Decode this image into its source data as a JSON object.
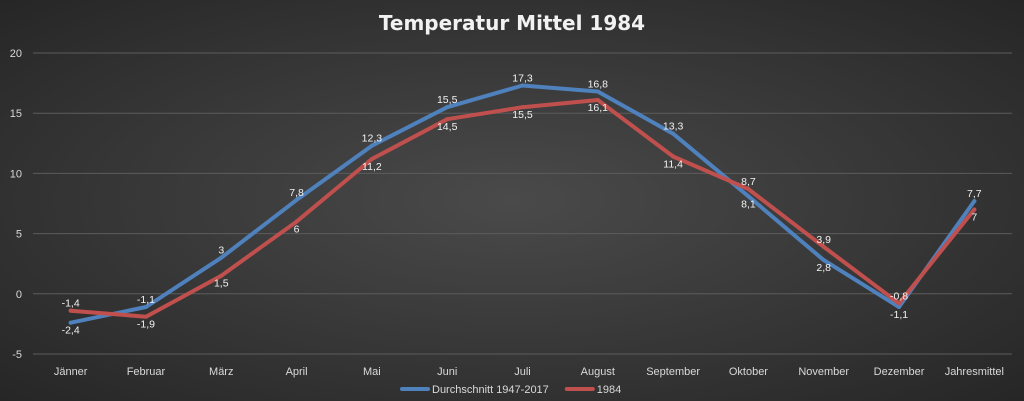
{
  "chart_data": {
    "type": "line",
    "title": "Temperatur Mittel 1984",
    "xlabel": "",
    "ylabel": "",
    "categories": [
      "Jänner",
      "Februar",
      "März",
      "April",
      "Mai",
      "Juni",
      "Juli",
      "August",
      "September",
      "Oktober",
      "November",
      "Dezember",
      "Jahresmittel"
    ],
    "ylim": [
      -5,
      20
    ],
    "yticks": [
      -5,
      0,
      5,
      10,
      15,
      20
    ],
    "grid": true,
    "legend_position": "bottom",
    "series": [
      {
        "name": "Durchschnitt 1947-2017",
        "color": "#4f81bd",
        "values": [
          -2.4,
          -1.1,
          3,
          7.8,
          12.3,
          15.5,
          17.3,
          16.8,
          13.3,
          8.1,
          2.8,
          -1.1,
          7.7
        ],
        "labels": [
          "-2,4",
          "-1,1",
          "3",
          "7,8",
          "12,3",
          "15,5",
          "17,3",
          "16,8",
          "13,3",
          "8,1",
          "2,8",
          "-1,1",
          "7,7"
        ]
      },
      {
        "name": "1984",
        "color": "#c0504d",
        "values": [
          -1.4,
          -1.9,
          1.5,
          6,
          11.2,
          14.5,
          15.5,
          16.1,
          11.4,
          8.7,
          3.9,
          -0.8,
          7
        ],
        "labels": [
          "-1,4",
          "-1,9",
          "1,5",
          "6",
          "11,2",
          "14,5",
          "15,5",
          "16,1",
          "11,4",
          "8,7",
          "3,9",
          "-0,8",
          "7"
        ]
      }
    ]
  }
}
